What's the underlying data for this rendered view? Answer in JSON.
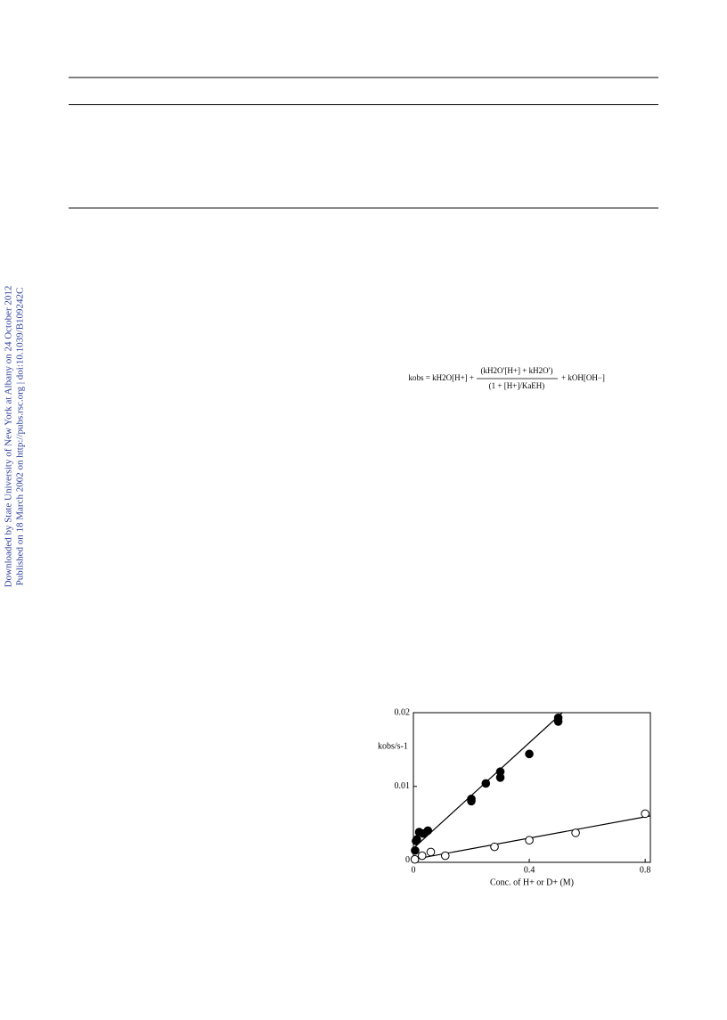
{
  "sidebar": [
    "Downloaded by State University of New York at Albany on 24 October 2012",
    "Published on 18 March 2002 on http://pubs.rsc.org | doi:10.1039/B109242C"
  ],
  "equation": {
    "left": "kobs = kH2O[H+] +",
    "numerator": "(kH2O′[H+] + kH2O′)",
    "denominator": "(1 + [H+]/KaEH)",
    "right": "+ kOH[OH−]"
  },
  "chart_data": {
    "type": "scatter",
    "x_label": "Conc. of H+ or D+ (M)",
    "y_label": "kobs/s-1",
    "xlim": [
      0,
      0.818
    ],
    "ylim": [
      -0.0003,
      0.02
    ],
    "xticks": [
      0,
      0.4,
      0.8
    ],
    "yticks": [
      0,
      0.01,
      0.02
    ],
    "series": [
      {
        "color": "#000000",
        "marker": "filled",
        "x": [
          0.006,
          0.009,
          0.012,
          0.02,
          0.034,
          0.05,
          0.2,
          0.2,
          0.25,
          0.3,
          0.3,
          0.4,
          0.5,
          0.5
        ],
        "values": [
          0.0013,
          0.0026,
          0.0028,
          0.0038,
          0.0036,
          0.004,
          0.0083,
          0.008,
          0.0104,
          0.0112,
          0.012,
          0.0144,
          0.0193,
          0.0188
        ]
      },
      {
        "color": "#000000",
        "marker": "open",
        "x": [
          0.005,
          0.03,
          0.06,
          0.11,
          0.28,
          0.4,
          0.56,
          0.8
        ],
        "values": [
          0.0001,
          0.0006,
          0.0011,
          0.0006,
          0.0018,
          0.0027,
          0.0037,
          0.0063
        ]
      }
    ],
    "fit_lines": [
      {
        "x": [
          0,
          0.514
        ],
        "values": [
          0.0016,
          0.02
        ]
      },
      {
        "x": [
          0,
          0.818
        ],
        "values": [
          0.0001,
          0.006
        ]
      }
    ]
  }
}
